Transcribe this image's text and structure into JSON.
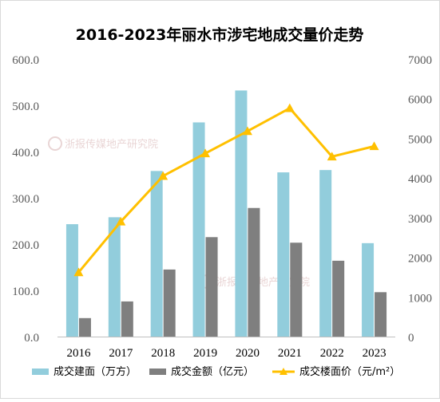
{
  "chart_data": {
    "type": "bar",
    "title": "2016-2023年丽水市涉宅地成交量价走势",
    "categories": [
      "2016",
      "2017",
      "2018",
      "2019",
      "2020",
      "2021",
      "2022",
      "2023"
    ],
    "y_left": {
      "range": [
        0,
        600
      ],
      "ticks": [
        0,
        100,
        200,
        300,
        400,
        500,
        600
      ],
      "tick_labels": [
        "0.0",
        "100.0",
        "200.0",
        "300.0",
        "400.0",
        "500.0",
        "600.0"
      ]
    },
    "y_right": {
      "range": [
        0,
        7000
      ],
      "ticks": [
        0,
        1000,
        2000,
        3000,
        4000,
        5000,
        6000,
        7000
      ],
      "tick_labels": [
        "0",
        "1000",
        "2000",
        "3000",
        "4000",
        "5000",
        "6000",
        "7000"
      ]
    },
    "series": [
      {
        "name": "成交建面（万方）",
        "type": "bar",
        "axis": "left",
        "color": "#92CDDC",
        "values": [
          243,
          258,
          358,
          463,
          532,
          355,
          360,
          202
        ]
      },
      {
        "name": "成交金额（亿元）",
        "type": "bar",
        "axis": "left",
        "color": "#7F7F7F",
        "values": [
          40,
          76,
          145,
          215,
          278,
          203,
          164,
          96
        ]
      },
      {
        "name": "成交楼面价（元/m²）",
        "type": "line",
        "axis": "right",
        "color": "#FFC000",
        "values": [
          1620,
          2900,
          4050,
          4620,
          5180,
          5760,
          4540,
          4800
        ]
      }
    ],
    "grid": false,
    "legend": "bottom"
  },
  "watermark": {
    "text": "浙报传媒地产研究院",
    "color": "#d8b3b3"
  }
}
